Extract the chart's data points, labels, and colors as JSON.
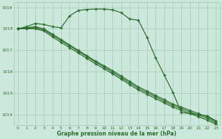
{
  "x": [
    0,
    1,
    2,
    3,
    4,
    5,
    6,
    7,
    8,
    9,
    10,
    11,
    12,
    13,
    14,
    15,
    16,
    17,
    18,
    19,
    20,
    21,
    22,
    23
  ],
  "line1": [
    1018.0,
    1018.1,
    1018.25,
    1018.2,
    1018.1,
    1018.05,
    1018.6,
    1018.85,
    1018.9,
    1018.92,
    1018.92,
    1018.88,
    1018.75,
    1018.45,
    1018.4,
    1017.6,
    1016.65,
    1015.85,
    1015.05,
    1014.1,
    1014.05,
    1014.0,
    1013.95,
    1013.72
  ],
  "line2": [
    1018.0,
    1018.05,
    1018.1,
    1018.0,
    1017.75,
    1017.5,
    1017.25,
    1017.0,
    1016.75,
    1016.5,
    1016.28,
    1016.05,
    1015.8,
    1015.55,
    1015.3,
    1015.1,
    1014.9,
    1014.7,
    1014.5,
    1014.35,
    1014.2,
    1014.05,
    1013.9,
    1013.68
  ],
  "line3": [
    1018.0,
    1018.02,
    1018.05,
    1017.95,
    1017.7,
    1017.45,
    1017.2,
    1016.95,
    1016.7,
    1016.45,
    1016.22,
    1015.98,
    1015.73,
    1015.48,
    1015.23,
    1015.03,
    1014.83,
    1014.63,
    1014.43,
    1014.28,
    1014.13,
    1013.98,
    1013.83,
    1013.62
  ],
  "line4": [
    1018.0,
    1018.0,
    1018.0,
    1017.9,
    1017.62,
    1017.37,
    1017.12,
    1016.87,
    1016.62,
    1016.37,
    1016.14,
    1015.9,
    1015.65,
    1015.4,
    1015.15,
    1014.95,
    1014.75,
    1014.55,
    1014.35,
    1014.2,
    1014.05,
    1013.9,
    1013.75,
    1013.55
  ],
  "bg_color": "#cce8dc",
  "grid_color": "#aaccbc",
  "line_color": "#2d6e2d",
  "marker": "+",
  "title": "Graphe pression niveau de la mer (hPa)",
  "ylim_min": 1013.5,
  "ylim_max": 1019.25,
  "xlim_min": -0.5,
  "xlim_max": 23.5,
  "yticks": [
    1014,
    1015,
    1016,
    1017,
    1018,
    1019
  ],
  "xticks": [
    0,
    1,
    2,
    3,
    4,
    5,
    6,
    7,
    8,
    9,
    10,
    11,
    12,
    13,
    14,
    15,
    16,
    17,
    18,
    19,
    20,
    21,
    22,
    23
  ]
}
